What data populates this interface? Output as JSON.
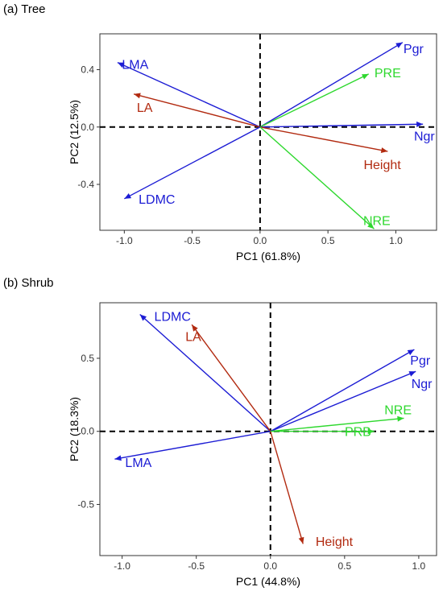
{
  "chart_data": [
    {
      "panel_label": "(a) Tree",
      "type": "biplot",
      "xlabel": "PC1 (61.8%)",
      "ylabel": "PC2 (12.5%)",
      "xlim": [
        -1.18,
        1.3
      ],
      "ylim": [
        -0.72,
        0.65
      ],
      "xticks": [
        -1.0,
        -0.5,
        0.0,
        0.5,
        1.0
      ],
      "xtick_labels": [
        "-1.0",
        "-0.5",
        "0.0",
        "0.5",
        "1.0"
      ],
      "yticks": [
        -0.4,
        0.0,
        0.4
      ],
      "ytick_labels": [
        "-0.4",
        "0.0",
        "0.4"
      ],
      "reference_lines": {
        "x": 0,
        "y": 0,
        "style": "dashed"
      },
      "grid": false,
      "arrows": [
        {
          "label": "LMA",
          "x": -1.05,
          "y": 0.45,
          "color": "#1c1cd4",
          "label_x": -0.92,
          "label_y": 0.44
        },
        {
          "label": "LA",
          "x": -0.93,
          "y": 0.23,
          "color": "#b22a10",
          "label_x": -0.85,
          "label_y": 0.14
        },
        {
          "label": "LDMC",
          "x": -1.0,
          "y": -0.5,
          "color": "#1c1cd4",
          "label_x": -0.76,
          "label_y": -0.5
        },
        {
          "label": "Pgr",
          "x": 1.05,
          "y": 0.59,
          "color": "#1c1cd4",
          "label_x": 1.13,
          "label_y": 0.55
        },
        {
          "label": "PRE",
          "x": 0.8,
          "y": 0.37,
          "color": "#2ed82e",
          "label_x": 0.94,
          "label_y": 0.38
        },
        {
          "label": "Ngr",
          "x": 1.2,
          "y": 0.02,
          "color": "#1c1cd4",
          "label_x": 1.21,
          "label_y": -0.06
        },
        {
          "label": "Height",
          "x": 0.94,
          "y": -0.17,
          "color": "#b22a10",
          "label_x": 0.9,
          "label_y": -0.26
        },
        {
          "label": "NRE",
          "x": 0.84,
          "y": -0.71,
          "color": "#2ed82e",
          "label_x": 0.86,
          "label_y": -0.65
        }
      ]
    },
    {
      "panel_label": "(b) Shrub",
      "type": "biplot",
      "xlabel": "PC1 (44.8%)",
      "ylabel": "PC2 (18.3%)",
      "xlim": [
        -1.15,
        1.12
      ],
      "ylim": [
        -0.85,
        0.88
      ],
      "xticks": [
        -1.0,
        -0.5,
        0.0,
        0.5,
        1.0
      ],
      "xtick_labels": [
        "-1.0",
        "-0.5",
        "0.0",
        "0.5",
        "1.0"
      ],
      "yticks": [
        -0.5,
        0.0,
        0.5
      ],
      "ytick_labels": [
        "-0.5",
        "0.0",
        "0.5"
      ],
      "reference_lines": {
        "x": 0,
        "y": 0,
        "style": "dashed"
      },
      "grid": false,
      "arrows": [
        {
          "label": "LDMC",
          "x": -0.88,
          "y": 0.8,
          "color": "#1c1cd4",
          "label_x": -0.66,
          "label_y": 0.79
        },
        {
          "label": "LA",
          "x": -0.53,
          "y": 0.73,
          "color": "#b22a10",
          "label_x": -0.52,
          "label_y": 0.65
        },
        {
          "label": "Pgr",
          "x": 0.97,
          "y": 0.56,
          "color": "#1c1cd4",
          "label_x": 1.01,
          "label_y": 0.49
        },
        {
          "label": "Ngr",
          "x": 0.98,
          "y": 0.41,
          "color": "#1c1cd4",
          "label_x": 1.02,
          "label_y": 0.33
        },
        {
          "label": "NRE",
          "x": 0.9,
          "y": 0.09,
          "color": "#2ed82e",
          "label_x": 0.86,
          "label_y": 0.15
        },
        {
          "label": "PRB",
          "x": 0.7,
          "y": 0.0,
          "color": "#2ed82e",
          "label_x": 0.59,
          "label_y": 0.0
        },
        {
          "label": "LMA",
          "x": -1.05,
          "y": -0.19,
          "color": "#1c1cd4",
          "label_x": -0.89,
          "label_y": -0.21
        },
        {
          "label": "Height",
          "x": 0.22,
          "y": -0.77,
          "color": "#b22a10",
          "label_x": 0.43,
          "label_y": -0.75
        }
      ]
    }
  ]
}
